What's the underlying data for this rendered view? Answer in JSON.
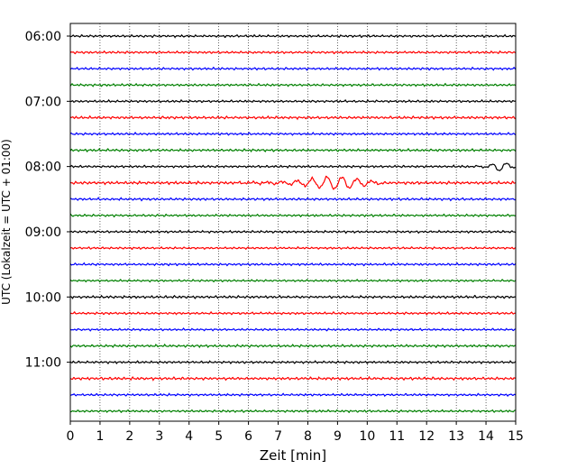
{
  "chart_data": {
    "type": "line",
    "title": "",
    "xlabel": "Zeit  [min]",
    "ylabel": "UTC (Lokalzeit = UTC + 01:00)",
    "xlim": [
      0,
      15
    ],
    "x_ticks": [
      "0",
      "1",
      "2",
      "3",
      "4",
      "5",
      "6",
      "7",
      "8",
      "9",
      "10",
      "11",
      "12",
      "13",
      "14",
      "15"
    ],
    "y_ticks": [
      "06:00",
      "07:00",
      "08:00",
      "09:00",
      "10:00",
      "11:00"
    ],
    "grid": "vertical dotted",
    "trace_interval_min": 15,
    "trace_colors": [
      "#000000",
      "#ff0000",
      "#0000ff",
      "#008000"
    ],
    "traces": [
      {
        "start": "06:00",
        "color": "#000000",
        "amplitude": 1.0
      },
      {
        "start": "06:15",
        "color": "#ff0000",
        "amplitude": 1.0
      },
      {
        "start": "06:30",
        "color": "#0000ff",
        "amplitude": 1.0
      },
      {
        "start": "06:45",
        "color": "#008000",
        "amplitude": 1.0
      },
      {
        "start": "07:00",
        "color": "#000000",
        "amplitude": 1.0
      },
      {
        "start": "07:15",
        "color": "#ff0000",
        "amplitude": 1.2
      },
      {
        "start": "07:30",
        "color": "#0000ff",
        "amplitude": 1.0
      },
      {
        "start": "07:45",
        "color": "#008000",
        "amplitude": 1.1
      },
      {
        "start": "08:00",
        "color": "#000000",
        "amplitude": 1.0,
        "burst": {
          "from": 13.3,
          "to": 15,
          "amplitude": 5
        }
      },
      {
        "start": "08:15",
        "color": "#ff0000",
        "amplitude": 1.3,
        "burst": {
          "from": 5,
          "to": 10.5,
          "amplitude": 7
        }
      },
      {
        "start": "08:30",
        "color": "#0000ff",
        "amplitude": 1.1
      },
      {
        "start": "08:45",
        "color": "#008000",
        "amplitude": 1.0
      },
      {
        "start": "09:00",
        "color": "#000000",
        "amplitude": 1.0
      },
      {
        "start": "09:15",
        "color": "#ff0000",
        "amplitude": 0.9
      },
      {
        "start": "09:30",
        "color": "#0000ff",
        "amplitude": 1.0
      },
      {
        "start": "09:45",
        "color": "#008000",
        "amplitude": 0.9
      },
      {
        "start": "10:00",
        "color": "#000000",
        "amplitude": 1.1
      },
      {
        "start": "10:15",
        "color": "#ff0000",
        "amplitude": 1.0
      },
      {
        "start": "10:30",
        "color": "#0000ff",
        "amplitude": 0.9
      },
      {
        "start": "10:45",
        "color": "#008000",
        "amplitude": 1.1
      },
      {
        "start": "11:00",
        "color": "#000000",
        "amplitude": 1.0
      },
      {
        "start": "11:15",
        "color": "#ff0000",
        "amplitude": 1.2
      },
      {
        "start": "11:30",
        "color": "#0000ff",
        "amplitude": 1.0
      },
      {
        "start": "11:45",
        "color": "#008000",
        "amplitude": 1.0
      }
    ]
  }
}
